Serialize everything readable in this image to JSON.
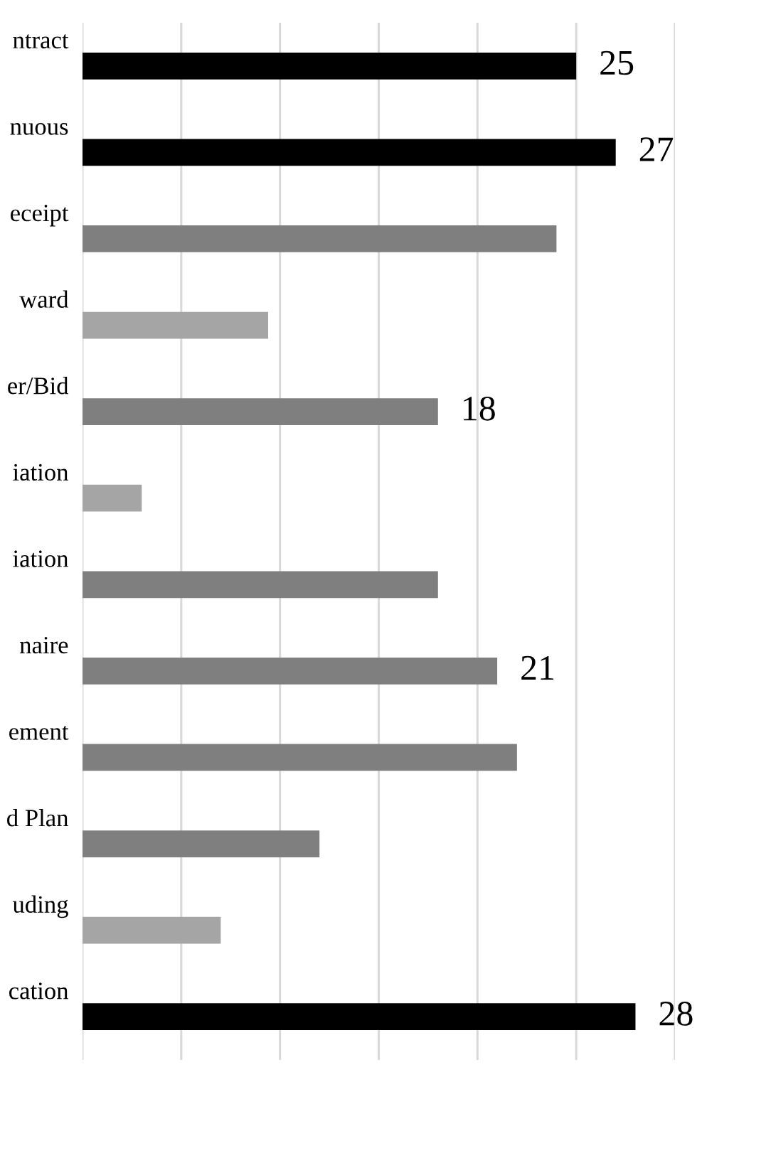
{
  "chart_data": {
    "type": "bar",
    "orientation": "horizontal",
    "categories": [
      "ntract",
      "nuous",
      "eceipt",
      "ward",
      "er/Bid",
      "iation",
      "iation",
      "naire",
      "ement",
      "d Plan",
      "uding",
      "cation"
    ],
    "values": [
      25,
      27,
      24,
      9.4,
      18,
      3,
      18,
      21,
      22,
      12,
      7,
      28
    ],
    "colors": [
      "#000000",
      "#000000",
      "#7f7f7f",
      "#a5a5a5",
      "#7f7f7f",
      "#a5a5a5",
      "#7f7f7f",
      "#7f7f7f",
      "#7f7f7f",
      "#7f7f7f",
      "#a5a5a5",
      "#000000"
    ],
    "value_labels": [
      "25",
      "27",
      null,
      null,
      "18",
      null,
      null,
      "21",
      null,
      null,
      null,
      "28"
    ],
    "xlim": [
      0,
      30
    ],
    "xticks": [
      {
        "value": 0,
        "label": null
      },
      {
        "value": 5,
        "label": null
      },
      {
        "value": 10,
        "label": null
      },
      {
        "value": 15,
        "label": null
      },
      {
        "value": 20,
        "label": null
      },
      {
        "value": 25,
        "label": null
      },
      {
        "value": 30,
        "label": null
      }
    ],
    "grid": "x",
    "tick_labels": "y"
  }
}
